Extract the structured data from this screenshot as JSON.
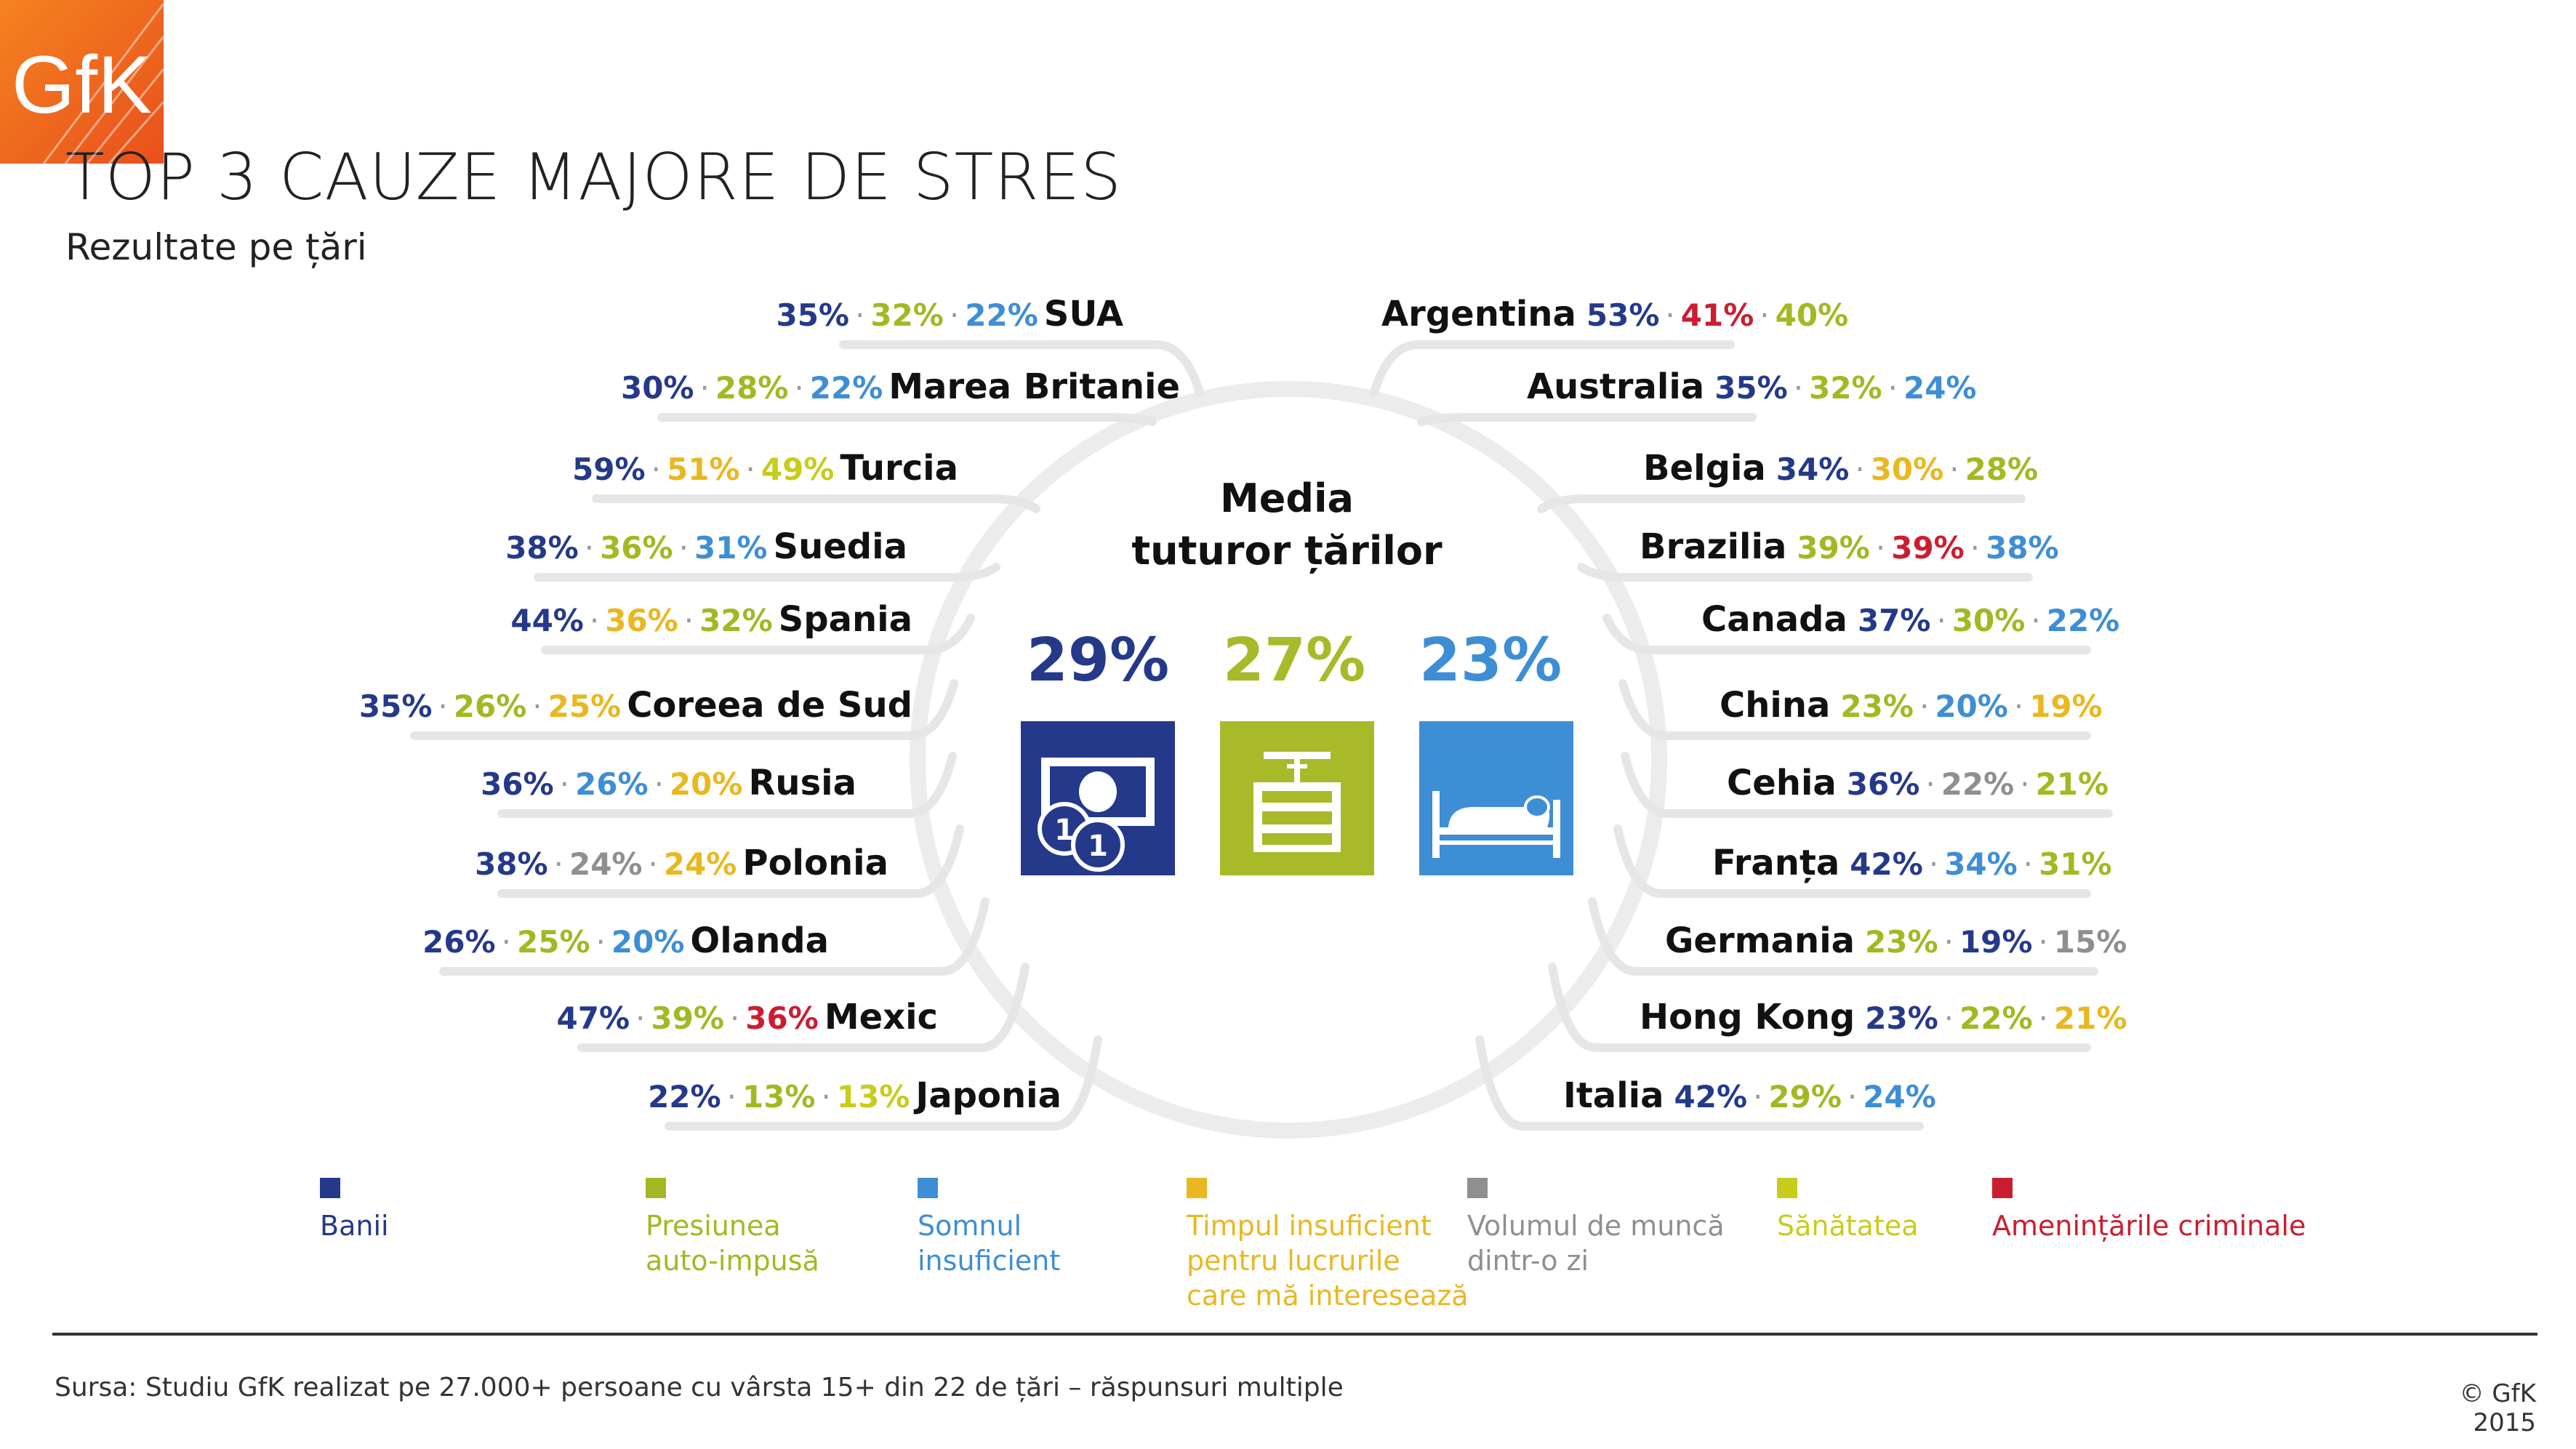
{
  "header": {
    "title": "TOP 3 CAUZE MAJORE DE STRES",
    "subtitle": "Rezultate pe țări"
  },
  "logo": {
    "text": "GfK"
  },
  "center": {
    "title_line1": "Media",
    "title_line2": "tuturor țărilor",
    "averages": [
      {
        "value": "29%",
        "color": "#25398a",
        "icon": "money-icon"
      },
      {
        "value": "27%",
        "color": "#a8b92a",
        "icon": "press-icon"
      },
      {
        "value": "23%",
        "color": "#3e8ed5",
        "icon": "bed-icon"
      }
    ]
  },
  "colors": {
    "banii": "#25398a",
    "presiunea": "#a3b822",
    "somnul": "#3e8ed5",
    "timpul": "#e9b820",
    "volumul": "#8f8f8f",
    "sanatatea": "#c8cc1c",
    "amenintarile": "#cc1d30"
  },
  "countries_left": [
    {
      "name": "SUA",
      "values": [
        [
          "35%",
          "banii"
        ],
        [
          "32%",
          "presiunea"
        ],
        [
          "22%",
          "somnul"
        ]
      ]
    },
    {
      "name": "Marea Britanie",
      "values": [
        [
          "30%",
          "banii"
        ],
        [
          "28%",
          "presiunea"
        ],
        [
          "22%",
          "somnul"
        ]
      ]
    },
    {
      "name": "Turcia",
      "values": [
        [
          "59%",
          "banii"
        ],
        [
          "51%",
          "timpul"
        ],
        [
          "49%",
          "sanatatea"
        ]
      ]
    },
    {
      "name": "Suedia",
      "values": [
        [
          "38%",
          "banii"
        ],
        [
          "36%",
          "presiunea"
        ],
        [
          "31%",
          "somnul"
        ]
      ]
    },
    {
      "name": "Spania",
      "values": [
        [
          "44%",
          "banii"
        ],
        [
          "36%",
          "timpul"
        ],
        [
          "32%",
          "presiunea"
        ]
      ]
    },
    {
      "name": "Coreea de Sud",
      "values": [
        [
          "35%",
          "banii"
        ],
        [
          "26%",
          "presiunea"
        ],
        [
          "25%",
          "timpul"
        ]
      ]
    },
    {
      "name": "Rusia",
      "values": [
        [
          "36%",
          "banii"
        ],
        [
          "26%",
          "somnul"
        ],
        [
          "20%",
          "timpul"
        ]
      ]
    },
    {
      "name": "Polonia",
      "values": [
        [
          "38%",
          "banii"
        ],
        [
          "24%",
          "volumul"
        ],
        [
          "24%",
          "timpul"
        ]
      ]
    },
    {
      "name": "Olanda",
      "values": [
        [
          "26%",
          "banii"
        ],
        [
          "25%",
          "presiunea"
        ],
        [
          "20%",
          "somnul"
        ]
      ]
    },
    {
      "name": "Mexic",
      "values": [
        [
          "47%",
          "banii"
        ],
        [
          "39%",
          "presiunea"
        ],
        [
          "36%",
          "amenintarile"
        ]
      ]
    },
    {
      "name": "Japonia",
      "values": [
        [
          "22%",
          "banii"
        ],
        [
          "13%",
          "presiunea"
        ],
        [
          "13%",
          "sanatatea"
        ]
      ]
    }
  ],
  "countries_right": [
    {
      "name": "Argentina",
      "values": [
        [
          "53%",
          "banii"
        ],
        [
          "41%",
          "amenintarile"
        ],
        [
          "40%",
          "presiunea"
        ]
      ]
    },
    {
      "name": "Australia",
      "values": [
        [
          "35%",
          "banii"
        ],
        [
          "32%",
          "presiunea"
        ],
        [
          "24%",
          "somnul"
        ]
      ]
    },
    {
      "name": "Belgia",
      "values": [
        [
          "34%",
          "banii"
        ],
        [
          "30%",
          "timpul"
        ],
        [
          "28%",
          "presiunea"
        ]
      ]
    },
    {
      "name": "Brazilia",
      "values": [
        [
          "39%",
          "presiunea"
        ],
        [
          "39%",
          "amenintarile"
        ],
        [
          "38%",
          "somnul"
        ]
      ]
    },
    {
      "name": "Canada",
      "values": [
        [
          "37%",
          "banii"
        ],
        [
          "30%",
          "presiunea"
        ],
        [
          "22%",
          "somnul"
        ]
      ]
    },
    {
      "name": "China",
      "values": [
        [
          "23%",
          "presiunea"
        ],
        [
          "20%",
          "somnul"
        ],
        [
          "19%",
          "timpul"
        ]
      ]
    },
    {
      "name": "Cehia",
      "values": [
        [
          "36%",
          "banii"
        ],
        [
          "22%",
          "volumul"
        ],
        [
          "21%",
          "presiunea"
        ]
      ]
    },
    {
      "name": "Franța",
      "values": [
        [
          "42%",
          "banii"
        ],
        [
          "34%",
          "somnul"
        ],
        [
          "31%",
          "presiunea"
        ]
      ]
    },
    {
      "name": "Germania",
      "values": [
        [
          "23%",
          "presiunea"
        ],
        [
          "19%",
          "banii"
        ],
        [
          "15%",
          "volumul"
        ]
      ]
    },
    {
      "name": "Hong Kong",
      "values": [
        [
          "23%",
          "banii"
        ],
        [
          "22%",
          "presiunea"
        ],
        [
          "21%",
          "timpul"
        ]
      ]
    },
    {
      "name": "Italia",
      "values": [
        [
          "42%",
          "banii"
        ],
        [
          "29%",
          "presiunea"
        ],
        [
          "24%",
          "somnul"
        ]
      ]
    }
  ],
  "legend": [
    {
      "key": "banii",
      "label": "Banii"
    },
    {
      "key": "presiunea",
      "label": "Presiunea\nauto-impusă"
    },
    {
      "key": "somnul",
      "label": "Somnul\ninsuficient"
    },
    {
      "key": "timpul",
      "label": "Timpul insuficient\npentru lucrurile\ncare mă interesează"
    },
    {
      "key": "volumul",
      "label": "Volumul de muncă\ndintr-o zi"
    },
    {
      "key": "sanatatea",
      "label": "Sănătatea"
    },
    {
      "key": "amenintarile",
      "label": "Amenințările criminale"
    }
  ],
  "footer": {
    "source": "Sursa: Studiu GfK realizat pe 27.000+ persoane cu vârsta 15+ din 22 de țări – răspunsuri multiple",
    "copyright": "© GfK 2015"
  }
}
